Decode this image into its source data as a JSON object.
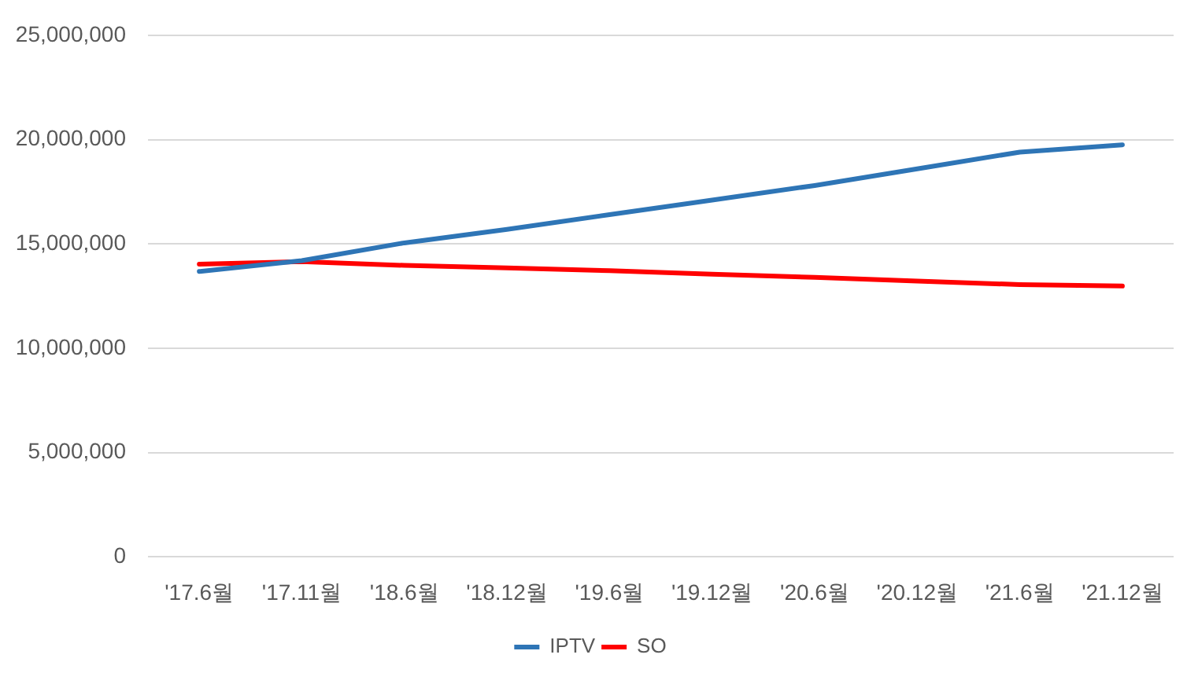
{
  "chart_data": {
    "type": "line",
    "categories": [
      "'17.6월",
      "'17.11월",
      "'18.6월",
      "'18.12월",
      "'19.6월",
      "'19.12월",
      "'20.6월",
      "'20.12월",
      "'21.6월",
      "'21.12월"
    ],
    "series": [
      {
        "name": "IPTV",
        "color": "#2e75b6",
        "values": [
          13680000,
          14200000,
          15050000,
          15700000,
          16400000,
          17100000,
          17800000,
          18600000,
          19400000,
          19750000
        ]
      },
      {
        "name": "SO",
        "color": "#ff0000",
        "values": [
          14030000,
          14150000,
          13970000,
          13850000,
          13720000,
          13550000,
          13400000,
          13220000,
          13050000,
          12980000
        ]
      }
    ],
    "ylim": [
      0,
      25000000
    ],
    "yticks": [
      0,
      {
        "value": 5000000,
        "label": "5,000,000"
      },
      {
        "value": 10000000,
        "label": "10,000,000"
      },
      {
        "value": 15000000,
        "label": "15,000,000"
      },
      {
        "value": 20000000,
        "label": "20,000,000"
      },
      {
        "value": 25000000,
        "label": "25,000,000"
      }
    ],
    "grid": "y",
    "legend": "bottom",
    "marker": "none",
    "line_style": "solid"
  }
}
